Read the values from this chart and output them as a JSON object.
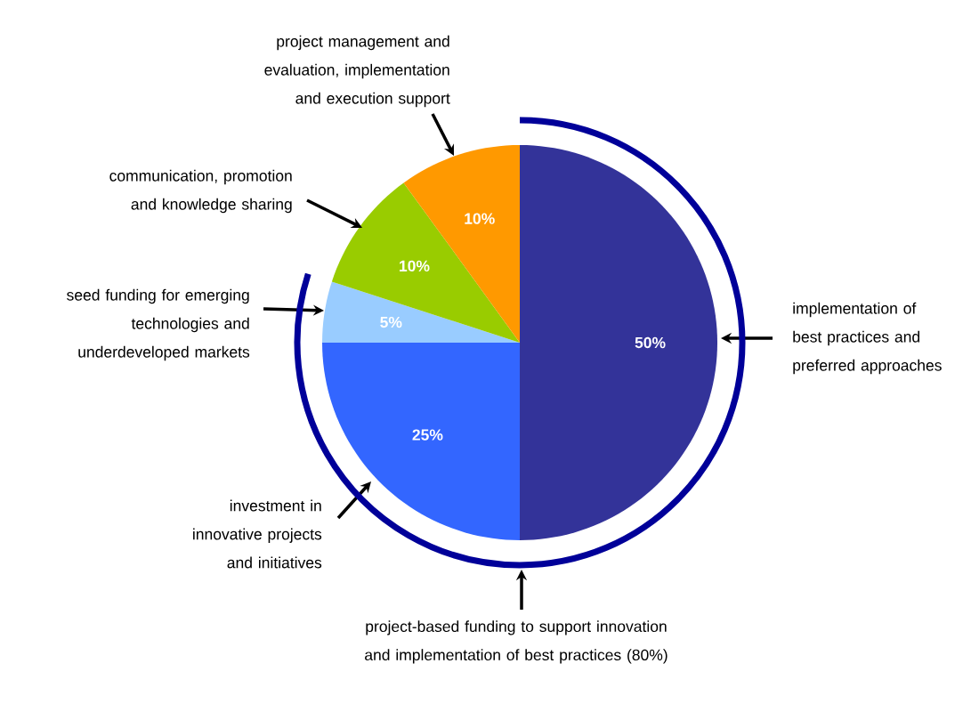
{
  "chart_data": {
    "type": "pie",
    "categories": [
      "implementation of best practices and preferred approaches",
      "investment in innovative projects and initiatives",
      "seed funding for emerging technologies and underdeveloped markets",
      "communication, promotion and knowledge sharing",
      "project management and evaluation, implementation and execution support"
    ],
    "values": [
      50,
      25,
      5,
      10,
      10
    ],
    "value_labels": [
      "50%",
      "25%",
      "5%",
      "10%",
      "10%"
    ],
    "colors": [
      "#333399",
      "#3366ff",
      "#99ccff",
      "#99cc00",
      "#ff9900"
    ],
    "annotations": [
      "project-based funding to support innovation and implementation of best practices (80%)"
    ]
  }
}
